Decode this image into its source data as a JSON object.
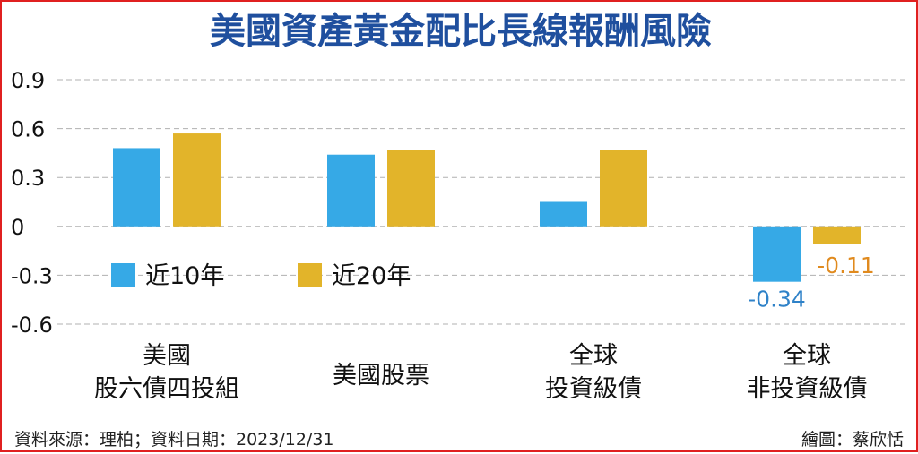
{
  "title": "美國資產黃金配比長線報酬風險",
  "footer": {
    "source": "資料來源：理柏；資料日期：2023/12/31",
    "credit": "繪圖：蔡欣恬"
  },
  "colors": {
    "title": "#1f4f9e",
    "series_10y": "#36a9e6",
    "series_20y": "#e2b42a",
    "label_10y": "#2f82c8",
    "label_20y": "#e08a1e",
    "grid": "#b0b0b0",
    "border": "#e02020"
  },
  "chart_data": {
    "type": "bar",
    "categories": [
      [
        "美國",
        "股六債四投組"
      ],
      [
        "美國股票"
      ],
      [
        "全球",
        "投資級債"
      ],
      [
        "全球",
        "非投資級債"
      ]
    ],
    "series": [
      {
        "name": "近10年",
        "values": [
          0.48,
          0.44,
          0.15,
          -0.34
        ]
      },
      {
        "name": "近20年",
        "values": [
          0.57,
          0.47,
          0.47,
          -0.11
        ]
      }
    ],
    "data_labels": [
      {
        "series": 0,
        "category": 3,
        "text": "-0.34"
      },
      {
        "series": 1,
        "category": 3,
        "text": "-0.11"
      }
    ],
    "ylim": [
      -0.6,
      0.9
    ],
    "yticks": [
      "0.9",
      "0.6",
      "0.3",
      "0",
      "-0.3",
      "-0.6"
    ],
    "ytick_values": [
      0.9,
      0.6,
      0.3,
      0,
      -0.3,
      -0.6
    ],
    "grid": true,
    "legend_position": "lower-left"
  }
}
